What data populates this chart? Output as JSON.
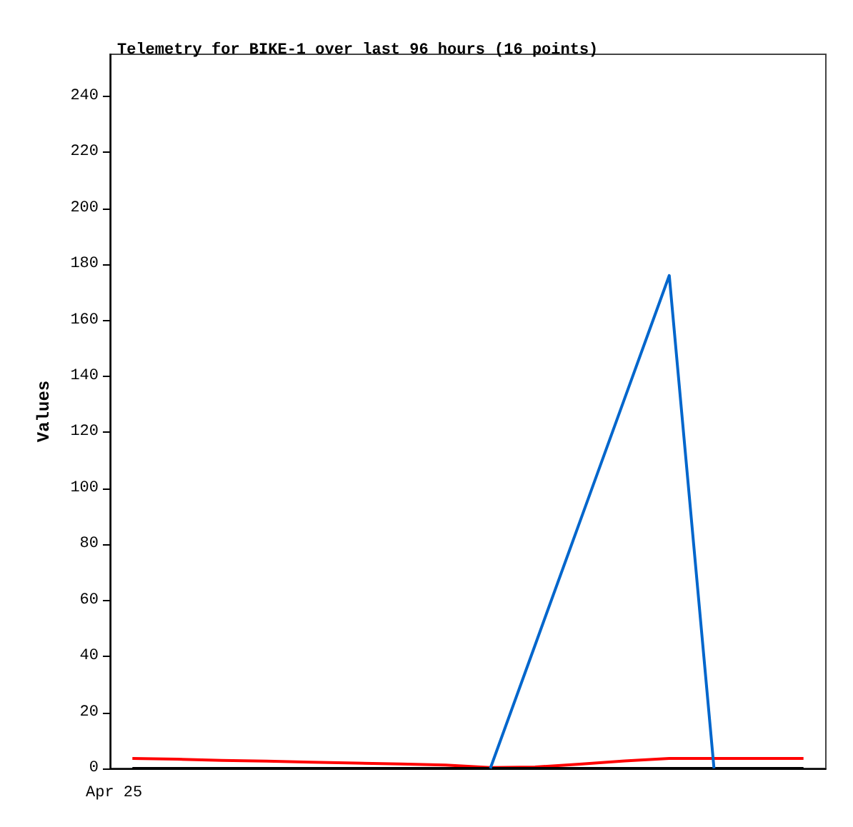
{
  "chart_data": {
    "type": "line",
    "title": "Telemetry for BIKE-1 over last 96 hours (16 points)",
    "ylabel": "Values",
    "categories": [
      null,
      null,
      null,
      null,
      null,
      null,
      null,
      null,
      null,
      null,
      null,
      null,
      null,
      null,
      null,
      null
    ],
    "annotations": [
      "Apr 25"
    ],
    "ylim": [
      0,
      255
    ],
    "yticks": [
      0,
      20,
      40,
      60,
      80,
      100,
      120,
      140,
      160,
      180,
      200,
      220,
      240
    ],
    "grid": false,
    "marker": "none",
    "line_style": "solid",
    "series": [
      {
        "color": "#ff0000",
        "values": [
          3.6,
          3.3,
          2.9,
          2.6,
          2.2,
          1.9,
          1.6,
          1.2,
          0.3,
          0.5,
          1.5,
          2.7,
          3.6,
          3.6,
          3.6,
          3.6
        ]
      },
      {
        "color": "#000000",
        "values": [
          0,
          0,
          0,
          0,
          0,
          0,
          0,
          0,
          0,
          0,
          0,
          0,
          0,
          0,
          0,
          0
        ]
      },
      {
        "color": "#0066cc",
        "values": [
          null,
          null,
          null,
          null,
          null,
          null,
          null,
          null,
          0,
          44,
          88,
          132,
          176,
          0,
          null,
          null
        ]
      }
    ]
  }
}
